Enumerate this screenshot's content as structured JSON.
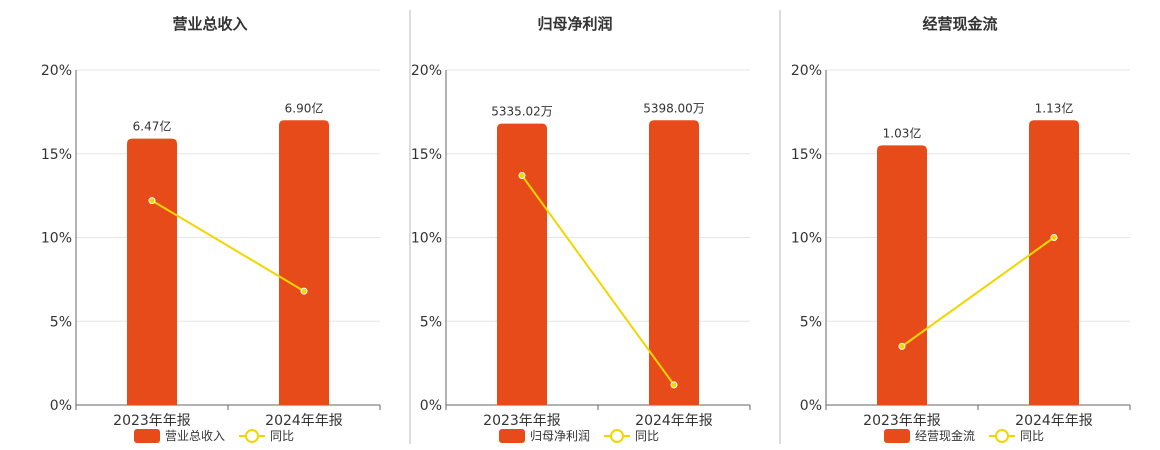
{
  "colors": {
    "bar": "#E84B1A",
    "line": "#F2D600",
    "grid": "#E6E6E6",
    "axis": "#666666",
    "divider": "#BBBBBB"
  },
  "chart_data": [
    {
      "type": "bar",
      "title": "营业总收入",
      "categories": [
        "2023年年报",
        "2024年年报"
      ],
      "series": [
        {
          "name": "营业总收入",
          "type": "bar",
          "values": [
            15.9,
            17.0
          ],
          "labels": [
            "6.47亿",
            "6.90亿"
          ]
        },
        {
          "name": "同比",
          "type": "line",
          "values": [
            12.2,
            6.8
          ]
        }
      ],
      "ylim": [
        0,
        20
      ],
      "yticks": [
        "0%",
        "5%",
        "10%",
        "15%",
        "20%"
      ],
      "legend": "bottom"
    },
    {
      "type": "bar",
      "title": "归母净利润",
      "categories": [
        "2023年年报",
        "2024年年报"
      ],
      "series": [
        {
          "name": "归母净利润",
          "type": "bar",
          "values": [
            16.8,
            17.0
          ],
          "labels": [
            "5335.02万",
            "5398.00万"
          ]
        },
        {
          "name": "同比",
          "type": "line",
          "values": [
            13.7,
            1.2
          ]
        }
      ],
      "ylim": [
        0,
        20
      ],
      "yticks": [
        "0%",
        "5%",
        "10%",
        "15%",
        "20%"
      ],
      "legend": "bottom"
    },
    {
      "type": "bar",
      "title": "经营现金流",
      "categories": [
        "2023年年报",
        "2024年年报"
      ],
      "series": [
        {
          "name": "经营现金流",
          "type": "bar",
          "values": [
            15.5,
            17.0
          ],
          "labels": [
            "1.03亿",
            "1.13亿"
          ]
        },
        {
          "name": "同比",
          "type": "line",
          "values": [
            3.5,
            10.0
          ]
        }
      ],
      "ylim": [
        0,
        20
      ],
      "yticks": [
        "0%",
        "5%",
        "10%",
        "15%",
        "20%"
      ],
      "legend": "bottom"
    }
  ]
}
